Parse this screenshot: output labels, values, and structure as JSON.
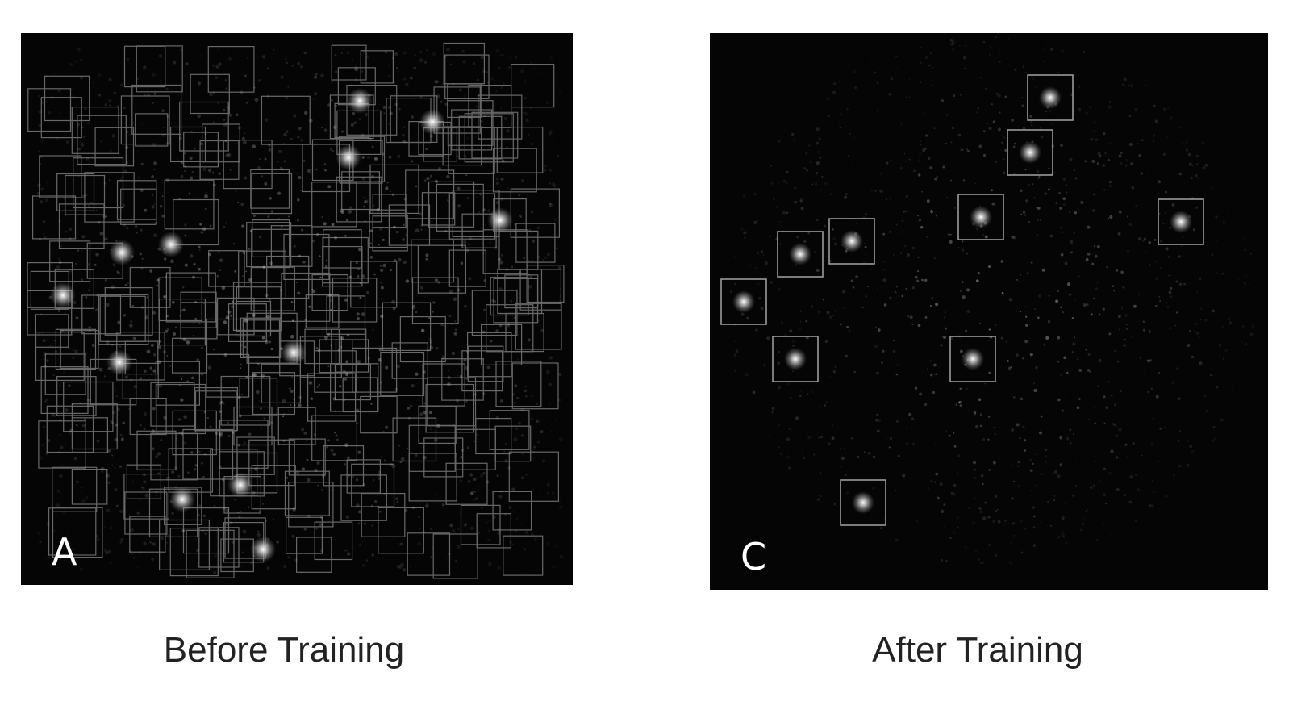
{
  "panels": {
    "before": {
      "letter": "A",
      "caption": "Before Training"
    },
    "after": {
      "letter": "C",
      "caption": "After Training"
    }
  }
}
